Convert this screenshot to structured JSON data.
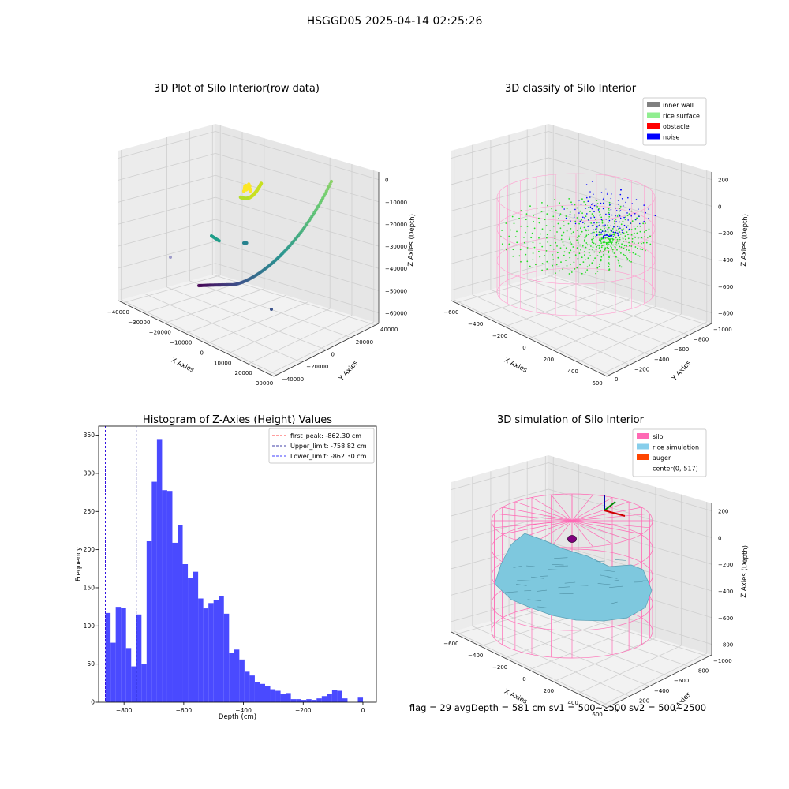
{
  "figure": {
    "suptitle": "HSGGD05 2025-04-14 02:25:26",
    "footer": "flag = 29  avgDepth = 581 cm  sv1 = 500~2500  sv2 = 500~2500"
  },
  "chart_data": [
    {
      "id": "raw",
      "type": "scatter",
      "title": "3D Plot of Silo Interior(row data)",
      "xlabel": "X Axies",
      "ylabel": "Y Axies",
      "zlabel": "Z Axies (Depth)",
      "x_ticks": [
        "−40000",
        "−30000",
        "−20000",
        "−10000",
        "0",
        "10000",
        "20000",
        "30000"
      ],
      "y_ticks": [
        "−40000",
        "−20000",
        "0",
        "20000",
        "40000"
      ],
      "z_ticks": [
        "0",
        "−10000",
        "−20000",
        "−30000",
        "−40000",
        "−50000",
        "−60000"
      ],
      "xlim": [
        -40000,
        30000
      ],
      "ylim": [
        -40000,
        40000
      ],
      "zlim": [
        -60000,
        0
      ],
      "colormap": "viridis"
    },
    {
      "id": "classify",
      "type": "scatter",
      "title": "3D classify of Silo Interior",
      "xlabel": "X Axies",
      "ylabel": "Y Axies",
      "zlabel": "Z Axies (Depth)",
      "x_ticks": [
        "−600",
        "−400",
        "−200",
        "0",
        "200",
        "400",
        "600"
      ],
      "y_ticks": [
        "0",
        "−200",
        "−400",
        "−600",
        "−800",
        "−1000"
      ],
      "z_ticks": [
        "200",
        "0",
        "−200",
        "−400",
        "−600",
        "−800"
      ],
      "legend": [
        {
          "label": "inner wall",
          "color": "#808080"
        },
        {
          "label": "rice surface",
          "color": "#90ee90"
        },
        {
          "label": "obstacle",
          "color": "#ff0000"
        },
        {
          "label": "noise",
          "color": "#0000ff"
        }
      ],
      "legend_loc": "upper right"
    },
    {
      "id": "hist",
      "type": "bar",
      "title": "Histogram of Z-Axies (Height) Values",
      "xlabel": "Depth (cm)",
      "ylabel": "Frequency",
      "xlim": [
        -885,
        45
      ],
      "ylim": [
        0,
        362
      ],
      "x_ticks": [
        -800,
        -600,
        -400,
        -200,
        0
      ],
      "x_tick_labels": [
        "−800",
        "−600",
        "−400",
        "−200",
        "0"
      ],
      "y_ticks": [
        0,
        50,
        100,
        150,
        200,
        250,
        300,
        350
      ],
      "bin_start": -862.3,
      "bin_width": 17.25,
      "bar_color": "#4a4aff",
      "values": [
        117,
        78,
        125,
        124,
        71,
        47,
        115,
        50,
        211,
        289,
        344,
        278,
        277,
        209,
        232,
        181,
        163,
        171,
        136,
        123,
        130,
        134,
        139,
        116,
        65,
        69,
        56,
        40,
        35,
        26,
        24,
        21,
        17,
        15,
        11,
        12,
        4,
        4,
        3,
        4,
        3,
        5,
        8,
        11,
        16,
        15,
        5,
        0,
        0,
        6
      ],
      "vlines": [
        {
          "label": "first_peak: -862.30 cm",
          "x": -862.3,
          "color": "#ff0000"
        },
        {
          "label": "Upper_limit: -758.82 cm",
          "x": -758.82,
          "color": "#00008b"
        },
        {
          "label": "Lower_limit: -862.30 cm",
          "x": -862.3,
          "color": "#0000ff"
        }
      ],
      "legend_loc": "upper right"
    },
    {
      "id": "sim",
      "type": "surface",
      "title": "3D simulation of Silo Interior",
      "xlabel": "X Axies",
      "ylabel": "Y Axies",
      "zlabel": "Z Axies (Depth)",
      "x_ticks": [
        "−600",
        "−400",
        "−200",
        "0",
        "200",
        "400",
        "600"
      ],
      "y_ticks": [
        "0",
        "−200",
        "−400",
        "−600",
        "−800",
        "−1000"
      ],
      "z_ticks": [
        "200",
        "0",
        "−200",
        "−400",
        "−600",
        "−800"
      ],
      "legend": [
        {
          "label": "silo",
          "color": "#ff69b4"
        },
        {
          "label": "rice simulation",
          "color": "#87ceeb"
        },
        {
          "label": "auger",
          "color": "#ff4500"
        },
        {
          "label": "center(0,-517)",
          "color": ""
        }
      ],
      "legend_loc": "upper right"
    }
  ]
}
